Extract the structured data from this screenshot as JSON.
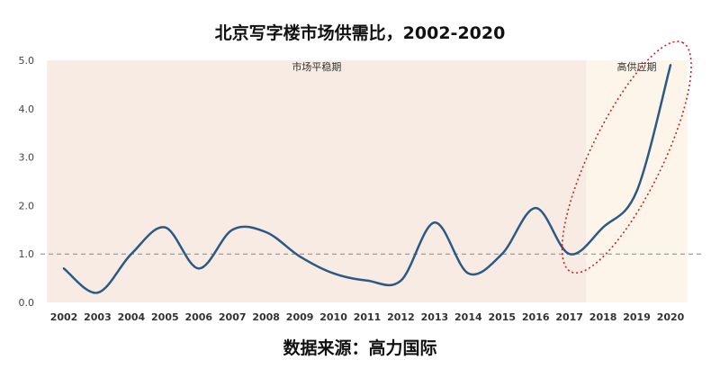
{
  "chart_data": {
    "type": "line",
    "title": "北京写字楼市场供需比，2002-2020",
    "x": [
      "2002",
      "2003",
      "2004",
      "2005",
      "2006",
      "2007",
      "2008",
      "2009",
      "2010",
      "2011",
      "2012",
      "2013",
      "2014",
      "2015",
      "2016",
      "2017",
      "2018",
      "2019",
      "2020"
    ],
    "series": [
      {
        "values": [
          0.7,
          0.2,
          1.0,
          1.55,
          0.7,
          1.5,
          1.45,
          0.95,
          0.6,
          0.45,
          0.45,
          1.65,
          0.6,
          1.0,
          1.95,
          1.0,
          1.55,
          2.3,
          4.9
        ]
      }
    ],
    "ylim": [
      0,
      5
    ],
    "yticks": [
      "0.0",
      "1.0",
      "2.0",
      "3.0",
      "4.0",
      "5.0"
    ],
    "reference_line": 1.0,
    "regions": [
      {
        "label": "市场平稳期",
        "from": "2001.5",
        "to": "2017.5"
      },
      {
        "label": "高供应期",
        "from": "2017.5",
        "to": "2020.5"
      }
    ],
    "colors": {
      "line": "#2b5a86",
      "region_stable": "#f8ebe3",
      "region_high": "#fdf5ea",
      "ellipse": "#cc2222",
      "reference_line": "#888888"
    },
    "grid": false
  },
  "footer": {
    "source": "数据来源：高力国际"
  }
}
